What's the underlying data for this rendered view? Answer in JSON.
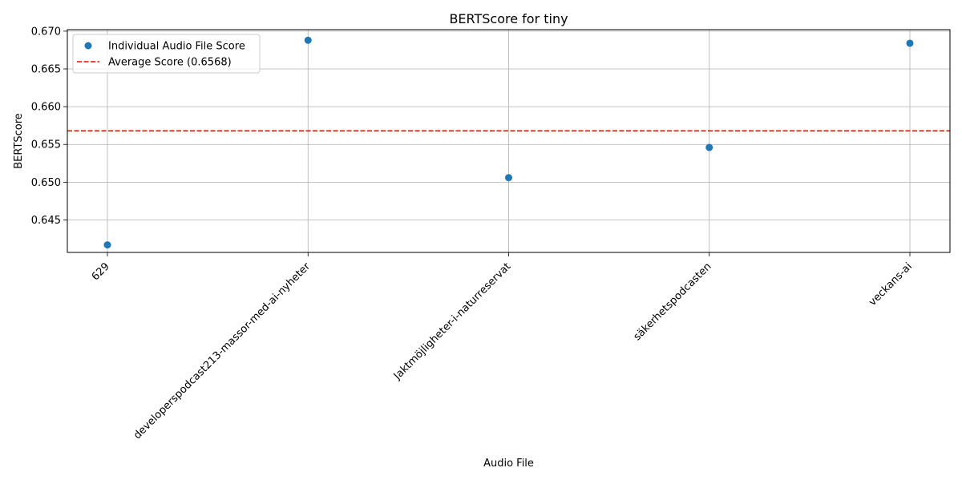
{
  "chart_data": {
    "type": "scatter",
    "title": "BERTScore for tiny",
    "xlabel": "Audio File",
    "ylabel": "BERTScore",
    "categories": [
      "629",
      "developerspodcast213-massor-med-ai-nyheter",
      "Jaktmöjligheter-i-naturreservat",
      "säkerhetspodcasten",
      "veckans-ai"
    ],
    "series": [
      {
        "name": "Individual Audio File Score",
        "values": [
          0.6417,
          0.6688,
          0.6506,
          0.6546,
          0.6684
        ],
        "color": "#1f77b4"
      }
    ],
    "average": {
      "name": "Average Score (0.6568)",
      "value": 0.6568,
      "color": "#ff0000",
      "style": "dashed"
    },
    "ylim": [
      0.6407,
      0.6702
    ],
    "yticks": [
      0.645,
      0.65,
      0.655,
      0.66,
      0.665,
      0.67
    ],
    "ytick_labels": [
      "0.645",
      "0.650",
      "0.655",
      "0.660",
      "0.665",
      "0.670"
    ],
    "grid": true,
    "legend_position": "top-left"
  }
}
